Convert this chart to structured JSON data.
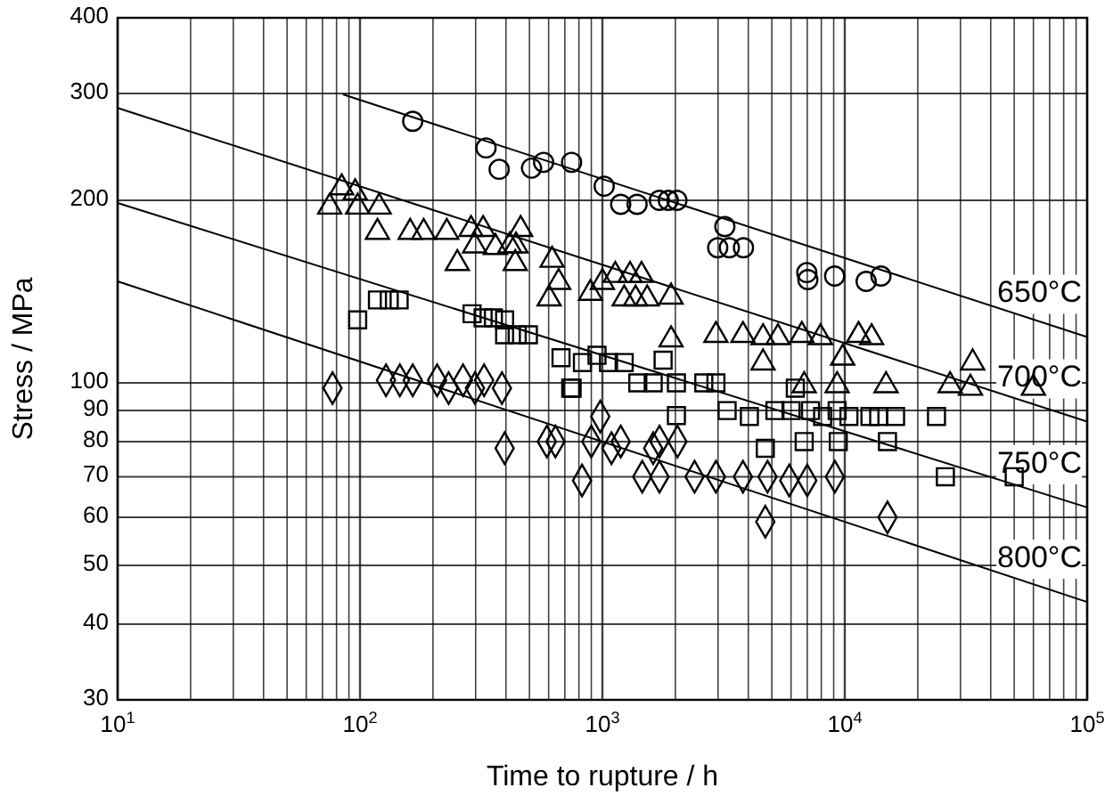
{
  "chart_data": {
    "type": "scatter",
    "xlabel": "Time to rupture / h",
    "ylabel": "Stress / MPa",
    "log": "xy",
    "grid": true,
    "xlim": [
      10,
      100000
    ],
    "ylim": [
      30,
      400
    ],
    "xticks": [
      {
        "value": 10,
        "label": "10$^{1}$"
      },
      {
        "value": 20,
        "label": null
      },
      {
        "value": 30,
        "label": null
      },
      {
        "value": 40,
        "label": null
      },
      {
        "value": 50,
        "label": null
      },
      {
        "value": 60,
        "label": null
      },
      {
        "value": 70,
        "label": null
      },
      {
        "value": 80,
        "label": null
      },
      {
        "value": 90,
        "label": null
      },
      {
        "value": 100,
        "label": "10$^{2}$"
      },
      {
        "value": 200,
        "label": null
      },
      {
        "value": 300,
        "label": null
      },
      {
        "value": 400,
        "label": null
      },
      {
        "value": 500,
        "label": null
      },
      {
        "value": 600,
        "label": null
      },
      {
        "value": 700,
        "label": null
      },
      {
        "value": 800,
        "label": null
      },
      {
        "value": 900,
        "label": null
      },
      {
        "value": 1000,
        "label": "10$^{3}$"
      },
      {
        "value": 2000,
        "label": null
      },
      {
        "value": 3000,
        "label": null
      },
      {
        "value": 4000,
        "label": null
      },
      {
        "value": 5000,
        "label": null
      },
      {
        "value": 6000,
        "label": null
      },
      {
        "value": 7000,
        "label": null
      },
      {
        "value": 8000,
        "label": null
      },
      {
        "value": 9000,
        "label": null
      },
      {
        "value": 10000,
        "label": "10$^{4}$"
      },
      {
        "value": 20000,
        "label": null
      },
      {
        "value": 30000,
        "label": null
      },
      {
        "value": 40000,
        "label": null
      },
      {
        "value": 50000,
        "label": null
      },
      {
        "value": 60000,
        "label": null
      },
      {
        "value": 70000,
        "label": null
      },
      {
        "value": 80000,
        "label": null
      },
      {
        "value": 90000,
        "label": null
      },
      {
        "value": 100000,
        "label": "10$^{5}$"
      }
    ],
    "yticks": [
      30,
      40,
      50,
      60,
      70,
      80,
      90,
      100,
      200,
      300,
      400
    ],
    "series": [
      {
        "marker": "circle",
        "color": "#000000",
        "x": [
          165,
          331,
          375,
          510,
          572,
          746,
          1017,
          1190,
          1390,
          1718,
          1870,
          2030,
          3200,
          2990,
          3340,
          3820,
          6970,
          7040,
          9080,
          12250,
          14100
        ],
        "values": [
          270,
          244,
          225,
          226,
          231,
          231,
          211,
          197,
          197,
          200,
          200,
          200,
          181,
          167,
          167,
          167,
          152,
          148,
          150,
          147,
          150
        ]
      },
      {
        "marker": "triangle",
        "color": "#000000",
        "x": [
          84,
          95.5,
          75,
          97.8,
          120,
          118,
          161,
          183,
          228,
          287,
          322,
          460,
          297,
          362,
          415,
          440,
          252,
          437,
          620,
          660,
          603,
          893,
          1000,
          1130,
          1300,
          1450,
          1230,
          1370,
          1530,
          1920,
          1920,
          2940,
          3800,
          4600,
          5300,
          6650,
          7940,
          11400,
          12900,
          4600,
          9800,
          6800,
          9300,
          14800,
          27200,
          33700,
          33000,
          60000
        ],
        "values": [
          212,
          208,
          197,
          197,
          197,
          179,
          179,
          179,
          179,
          181,
          181,
          181,
          170,
          169,
          170,
          170,
          159,
          159,
          161,
          148,
          139,
          142,
          148,
          152,
          152,
          152,
          139,
          139,
          139,
          140,
          119,
          121,
          121,
          120,
          120,
          121,
          120,
          121,
          120,
          109,
          111,
          100,
          100,
          100,
          100,
          109,
          99,
          99
        ]
      },
      {
        "marker": "square",
        "color": "#000000",
        "x": [
          97.8,
          118,
          132,
          145,
          290,
          322,
          355,
          395,
          395,
          445,
          495,
          675,
          827,
          950,
          740,
          1060,
          1230,
          1780,
          1400,
          1620,
          2020,
          2620,
          2940,
          2020,
          3270,
          4040,
          5150,
          6000,
          7220,
          8100,
          9300,
          10400,
          12700,
          13800,
          16200,
          23900,
          750,
          6250,
          4700,
          6800,
          9400,
          15000,
          26000,
          50000
        ],
        "values": [
          127,
          137,
          137,
          137,
          130,
          128,
          128,
          127,
          120,
          120,
          120,
          110,
          108,
          111,
          98,
          108,
          108,
          109,
          100,
          100,
          100,
          100,
          100,
          88.3,
          90,
          88,
          90,
          90,
          90,
          88,
          90,
          88,
          88,
          88,
          88,
          88,
          98,
          98,
          78,
          80,
          80,
          80,
          70,
          70
        ]
      },
      {
        "marker": "diamond",
        "color": "#000000",
        "x": [
          77,
          128,
          146,
          165,
          208,
          232,
          266,
          298,
          325,
          385,
          395,
          590,
          640,
          824,
          900,
          980,
          1090,
          1190,
          1620,
          1720,
          2040,
          1460,
          1720,
          2400,
          2940,
          3800,
          4800,
          5900,
          7000,
          9100,
          4700,
          15000
        ],
        "values": [
          98,
          101,
          101,
          101,
          101,
          98,
          101,
          98,
          101,
          98,
          78,
          80,
          80,
          69,
          80,
          88,
          78,
          80,
          78,
          80,
          80,
          70,
          70,
          70,
          70,
          70,
          70,
          69,
          69,
          70,
          59,
          60
        ]
      },
      {
        "type": "line",
        "marker": "none",
        "line_style": "solid",
        "color": "#000000",
        "x": [
          85,
          100000
        ],
        "values": [
          299,
          119
        ]
      },
      {
        "type": "line",
        "marker": "none",
        "line_style": "solid",
        "color": "#000000",
        "x": [
          10,
          100000
        ],
        "values": [
          284,
          86.3
        ]
      },
      {
        "type": "line",
        "marker": "none",
        "line_style": "solid",
        "color": "#000000",
        "x": [
          10,
          100000
        ],
        "values": [
          198,
          62.3
        ]
      },
      {
        "type": "line",
        "marker": "none",
        "line_style": "solid",
        "color": "#000000",
        "x": [
          10,
          100000
        ],
        "values": [
          147,
          43.5
        ]
      }
    ],
    "annotations": [
      "650°C",
      "700°C",
      "750°C",
      "800°C"
    ]
  }
}
